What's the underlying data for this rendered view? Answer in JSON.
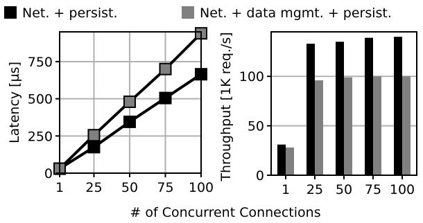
{
  "legend": {
    "items": [
      {
        "label": "Net. + persist.",
        "color": "#000000"
      },
      {
        "label": "Net. + data mgmt. + persist.",
        "color": "#808080"
      }
    ],
    "placement": "top-center"
  },
  "shared_xlabel": "# of Concurrent Connections",
  "chart_data": [
    {
      "type": "line",
      "title": "",
      "ylabel": "Latency [µs]",
      "xlabel": "",
      "x": [
        1,
        25,
        50,
        75,
        100
      ],
      "xlim": [
        1,
        100
      ],
      "ylim": [
        0,
        950
      ],
      "yticks": [
        0,
        250,
        500,
        750
      ],
      "grid": true,
      "series": [
        {
          "name": "Net. + persist.",
          "color": "#000000",
          "values": [
            30,
            175,
            345,
            505,
            665
          ]
        },
        {
          "name": "Net. + data mgmt. + persist.",
          "color": "#808080",
          "values": [
            30,
            255,
            480,
            700,
            940
          ]
        }
      ]
    },
    {
      "type": "bar",
      "title": "",
      "ylabel": "Throughput [1K req./s]",
      "xlabel": "",
      "categories": [
        "1",
        "25",
        "50",
        "75",
        "100"
      ],
      "ylim": [
        0,
        145
      ],
      "yticks": [
        0,
        50,
        100
      ],
      "grid": true,
      "series": [
        {
          "name": "Net. + persist.",
          "color": "#000000",
          "values": [
            31,
            133,
            135,
            139,
            140
          ]
        },
        {
          "name": "Net. + data mgmt. + persist.",
          "color": "#808080",
          "values": [
            28,
            96,
            99,
            100,
            100
          ]
        }
      ]
    }
  ]
}
